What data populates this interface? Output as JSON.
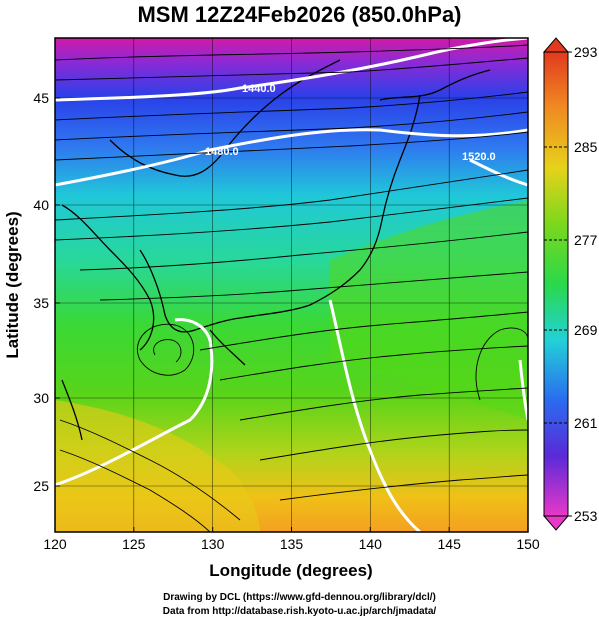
{
  "title": "MSM 12Z24Feb2026 (850.0hPa)",
  "x_axis": {
    "label": "Longitude (degrees)",
    "ticks": [
      "120",
      "125",
      "130",
      "135",
      "140",
      "145",
      "150"
    ],
    "range": [
      120,
      150
    ]
  },
  "y_axis": {
    "label": "Latitude  (degrees)",
    "ticks": [
      "25",
      "30",
      "35",
      "40",
      "45"
    ],
    "range": [
      22.5,
      47.7
    ]
  },
  "colorbar": {
    "ticks": [
      "293",
      "285",
      "277",
      "269",
      "261",
      "253"
    ],
    "range": [
      253,
      293
    ]
  },
  "contour_labels": [
    "1440.0",
    "1480.0",
    "1520.0"
  ],
  "credits": [
    "Drawing by DCL (https://www.gfd-dennou.org/library/dcl/)",
    "Data from http://database.rish.kyoto-u.ac.jp/arch/jmadata/"
  ]
}
